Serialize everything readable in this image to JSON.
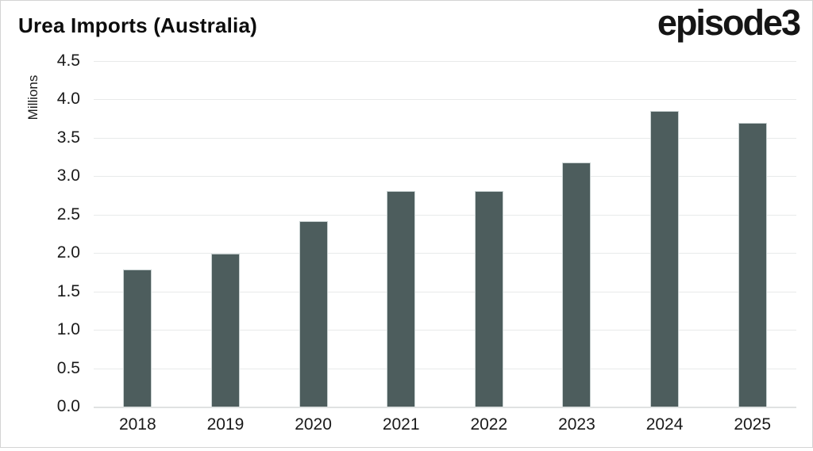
{
  "page": {
    "title": "Urea Imports (Australia)",
    "brand": "episode3"
  },
  "chart_data": {
    "type": "bar",
    "title": "Urea Imports (Australia)",
    "xlabel": "",
    "ylabel": "Millions",
    "categories": [
      "2018",
      "2019",
      "2020",
      "2021",
      "2022",
      "2023",
      "2024",
      "2025"
    ],
    "values": [
      1.79,
      1.99,
      2.42,
      2.81,
      2.81,
      3.18,
      3.85,
      3.7
    ],
    "ylim": [
      0,
      4.5
    ],
    "y_ticks": [
      "0.0",
      "0.5",
      "1.0",
      "1.5",
      "2.0",
      "2.5",
      "3.0",
      "3.5",
      "4.0",
      "4.5"
    ],
    "grid": true,
    "legend": "none",
    "colors": {
      "bar_fill": "#4d5d5d",
      "bar_stroke": "#c9d2d2",
      "gridline": "#e8eaea",
      "axis_line": "#e0e2e2",
      "text": "#111111",
      "background": "#ffffff",
      "card_border": "#d4d4d4"
    }
  }
}
